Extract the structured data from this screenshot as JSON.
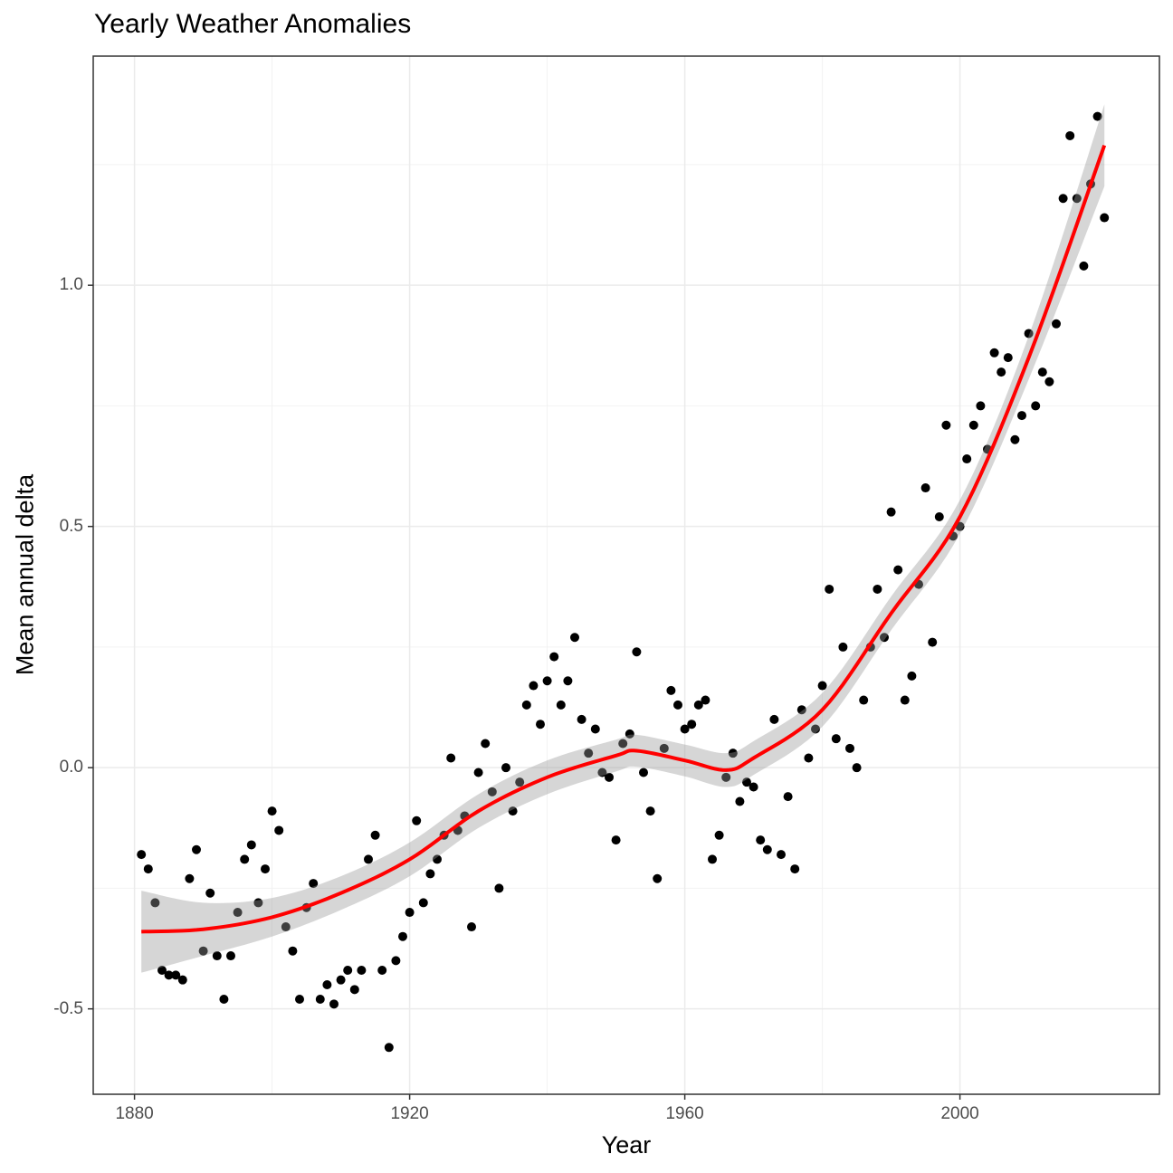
{
  "chart_data": {
    "type": "scatter",
    "title": "Yearly Weather Anomalies",
    "xlabel": "Year",
    "ylabel": "Mean annual delta",
    "xlim": [
      1874,
      2029
    ],
    "ylim": [
      -0.677,
      1.475
    ],
    "xticks": [
      1880,
      1920,
      1960,
      2000
    ],
    "xtick_labels": [
      "1880",
      "1920",
      "1960",
      "2000"
    ],
    "yticks": [
      -0.5,
      0.0,
      0.5,
      1.0
    ],
    "ytick_labels": [
      "-0.5",
      "0.0",
      "0.5",
      "1.0"
    ],
    "grid": true,
    "point_color": "#000000",
    "smooth_color": "#ff0000",
    "ribbon_color": "#999999",
    "points": {
      "x": [
        1881,
        1882,
        1883,
        1884,
        1885,
        1886,
        1887,
        1888,
        1889,
        1890,
        1891,
        1892,
        1893,
        1894,
        1895,
        1896,
        1897,
        1898,
        1899,
        1900,
        1901,
        1902,
        1903,
        1904,
        1905,
        1906,
        1907,
        1908,
        1909,
        1910,
        1911,
        1912,
        1913,
        1914,
        1915,
        1916,
        1917,
        1918,
        1919,
        1920,
        1921,
        1922,
        1923,
        1924,
        1925,
        1926,
        1927,
        1928,
        1929,
        1930,
        1931,
        1932,
        1933,
        1934,
        1935,
        1936,
        1937,
        1938,
        1939,
        1940,
        1941,
        1942,
        1943,
        1944,
        1945,
        1946,
        1947,
        1948,
        1949,
        1950,
        1951,
        1952,
        1953,
        1954,
        1955,
        1956,
        1957,
        1958,
        1959,
        1960,
        1961,
        1962,
        1963,
        1964,
        1965,
        1966,
        1967,
        1968,
        1969,
        1970,
        1971,
        1972,
        1973,
        1974,
        1975,
        1976,
        1977,
        1978,
        1979,
        1980,
        1981,
        1982,
        1983,
        1984,
        1985,
        1986,
        1987,
        1988,
        1989,
        1990,
        1991,
        1992,
        1993,
        1994,
        1995,
        1996,
        1997,
        1998,
        1999,
        2000,
        2001,
        2002,
        2003,
        2004,
        2005,
        2006,
        2007,
        2008,
        2009,
        2010,
        2011,
        2012,
        2013,
        2014,
        2015,
        2016,
        2017,
        2018,
        2019,
        2020,
        2021
      ],
      "y": [
        -0.18,
        -0.21,
        -0.28,
        -0.42,
        -0.43,
        -0.43,
        -0.44,
        -0.23,
        -0.17,
        -0.38,
        -0.26,
        -0.39,
        -0.48,
        -0.39,
        -0.3,
        -0.19,
        -0.16,
        -0.28,
        -0.21,
        -0.09,
        -0.13,
        -0.33,
        -0.38,
        -0.48,
        -0.29,
        -0.24,
        -0.48,
        -0.45,
        -0.49,
        -0.44,
        -0.42,
        -0.46,
        -0.42,
        -0.19,
        -0.14,
        -0.42,
        -0.58,
        -0.4,
        -0.35,
        -0.3,
        -0.11,
        -0.28,
        -0.22,
        -0.19,
        -0.14,
        0.02,
        -0.13,
        -0.1,
        -0.33,
        -0.01,
        0.05,
        -0.05,
        -0.25,
        0.0,
        -0.09,
        -0.03,
        0.13,
        0.17,
        0.09,
        0.18,
        0.23,
        0.13,
        0.18,
        0.27,
        0.1,
        0.03,
        0.08,
        -0.01,
        -0.02,
        -0.15,
        0.05,
        0.07,
        0.24,
        -0.01,
        -0.09,
        -0.23,
        0.04,
        0.16,
        0.13,
        0.08,
        0.09,
        0.13,
        0.14,
        -0.19,
        -0.14,
        -0.02,
        0.03,
        -0.07,
        -0.03,
        -0.04,
        -0.15,
        -0.17,
        0.1,
        -0.18,
        -0.06,
        -0.21,
        0.12,
        0.02,
        0.08,
        0.17,
        0.37,
        0.06,
        0.25,
        0.04,
        0.0,
        0.14,
        0.25,
        0.37,
        0.27,
        0.53,
        0.41,
        0.14,
        0.19,
        0.38,
        0.58,
        0.26,
        0.52,
        0.71,
        0.48,
        0.5,
        0.64,
        0.71,
        0.75,
        0.66,
        0.86,
        0.82,
        0.85,
        0.68,
        0.73,
        0.9,
        0.75,
        0.82,
        0.8,
        0.92,
        1.18,
        1.31,
        1.18,
        1.04,
        1.21,
        1.35,
        1.14
      ]
    },
    "smooth": {
      "x": [
        1881,
        1890,
        1900,
        1910,
        1920,
        1930,
        1940,
        1950,
        1953,
        1960,
        1966,
        1970,
        1980,
        1990,
        2000,
        2010,
        2021
      ],
      "y": [
        -0.34,
        -0.335,
        -0.31,
        -0.26,
        -0.19,
        -0.09,
        -0.02,
        0.025,
        0.035,
        0.015,
        -0.005,
        0.02,
        0.12,
        0.32,
        0.52,
        0.85,
        1.29
      ],
      "ci_halfwidth": [
        0.085,
        0.055,
        0.04,
        0.035,
        0.035,
        0.035,
        0.035,
        0.033,
        0.033,
        0.033,
        0.035,
        0.035,
        0.035,
        0.035,
        0.035,
        0.045,
        0.085
      ]
    }
  }
}
